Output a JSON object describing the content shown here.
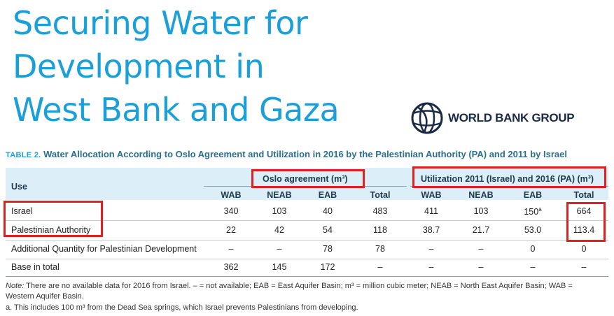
{
  "title_lines": [
    "Securing Water for",
    "Development in",
    "West Bank and Gaza"
  ],
  "logo": {
    "text": "WORLD BANK GROUP",
    "icon": "globe-icon",
    "color": "#1b2a44"
  },
  "table": {
    "caption_label": "TABLE 2.",
    "caption_text": "Water Allocation According to Oslo Agreement and Utilization in 2016 by the Palestinian Authority (PA) and 2011 by Israel",
    "group_oslo": "Oslo agreement (m³)",
    "group_util": "Utilization 2011 (Israel) and 2016 (PA) (m³)",
    "col_use": "Use",
    "columns": [
      "WAB",
      "NEAB",
      "EAB",
      "Total",
      "WAB",
      "NEAB",
      "EAB",
      "Total"
    ],
    "rows": [
      {
        "label": "Israel",
        "values": [
          "340",
          "103",
          "40",
          "483",
          "411",
          "103",
          "150",
          "664"
        ],
        "sup": "a"
      },
      {
        "label": "Palestinian Authority",
        "values": [
          "22",
          "42",
          "54",
          "118",
          "38.7",
          "21.7",
          "53.0",
          "113.4"
        ]
      },
      {
        "label": "Additional Quantity for Palestinian Development",
        "values": [
          "–",
          "–",
          "78",
          "78",
          "–",
          "–",
          "0",
          "0"
        ]
      },
      {
        "label": "Base in total",
        "values": [
          "362",
          "145",
          "172",
          "–",
          "–",
          "–",
          "–",
          "–"
        ]
      }
    ]
  },
  "notes": {
    "note_label": "Note:",
    "note_text": " There are no available data for 2016 from Israel. – = not available; EAB = East Aquifer Basin; m³ = million cubic meter; NEAB = North East Aquifer Basin; WAB =",
    "note_text2": "Western Aquifer Basin.",
    "footnote": "a. This includes 100 m³ from the Dead Sea springs, which Israel prevents Palestinians from developing."
  },
  "colors": {
    "title": "#1a9fd9",
    "header_band": "#dceef7",
    "highlight": "#e0201f"
  }
}
